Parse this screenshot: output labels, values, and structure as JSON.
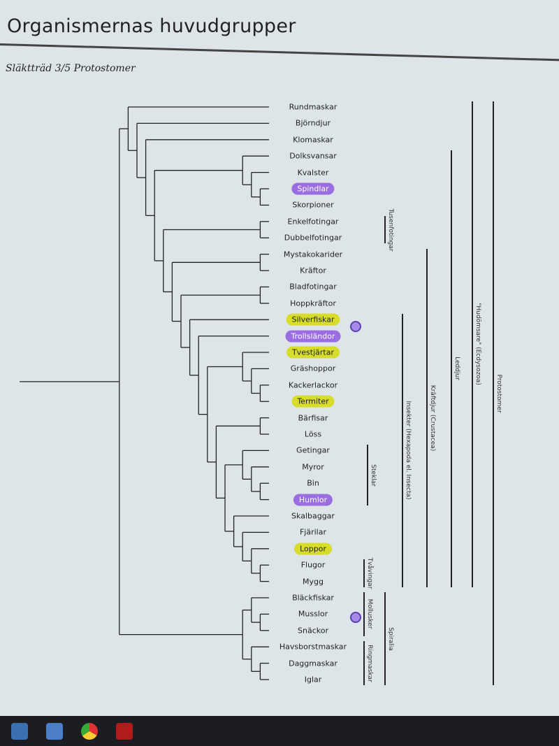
{
  "header": {
    "title": "Organismernas huvudgrupper",
    "subtitle": "Släktträd 3/5 Protostomer"
  },
  "leaves": [
    {
      "name": "Rundmaskar"
    },
    {
      "name": "Björndjur"
    },
    {
      "name": "Klomaskar"
    },
    {
      "name": "Dolksvansar"
    },
    {
      "name": "Kvalster"
    },
    {
      "name": "Spindlar",
      "highlight": "purple"
    },
    {
      "name": "Skorpioner"
    },
    {
      "name": "Enkelfotingar"
    },
    {
      "name": "Dubbelfotingar"
    },
    {
      "name": "Mystakokarider"
    },
    {
      "name": "Kräftor"
    },
    {
      "name": "Bladfotingar"
    },
    {
      "name": "Hoppkräftor"
    },
    {
      "name": "Silverfiskar",
      "highlight": "yellow"
    },
    {
      "name": "Trollsländor",
      "highlight": "purple"
    },
    {
      "name": "Tvestjärtar",
      "highlight": "yellow"
    },
    {
      "name": "Gräshoppor"
    },
    {
      "name": "Kackerlackor"
    },
    {
      "name": "Termiter",
      "highlight": "yellow"
    },
    {
      "name": "Bärfisar"
    },
    {
      "name": "Löss"
    },
    {
      "name": "Getingar"
    },
    {
      "name": "Myror"
    },
    {
      "name": "Bin"
    },
    {
      "name": "Humlor",
      "highlight": "purple"
    },
    {
      "name": "Skalbaggar"
    },
    {
      "name": "Fjärilar"
    },
    {
      "name": "Loppor",
      "highlight": "yellow"
    },
    {
      "name": "Flugor"
    },
    {
      "name": "Mygg"
    },
    {
      "name": "Bläckfiskar"
    },
    {
      "name": "Musslor"
    },
    {
      "name": "Snäckor"
    },
    {
      "name": "Havsborstmaskar"
    },
    {
      "name": "Daggmaskar"
    },
    {
      "name": "Iglar"
    }
  ],
  "tree": [
    [
      0,
      [
        1,
        [
          2,
          [
            [
              3,
              [
                4,
                [
                  5,
                  6
                ]
              ]
            ],
            [
              [
                7,
                8
              ],
              [
                [
                  9,
                  10
                ],
                [
                  [
                    11,
                    12
                  ],
                  [
                    13,
                    [
                      14,
                      [
                        [
                          15,
                          [
                            16,
                            [
                              17,
                              18
                            ]
                          ]
                        ],
                        [
                          [
                            19,
                            20
                          ],
                          [
                            [
                              21,
                              [
                                22,
                                [
                                  23,
                                  24
                                ]
                              ]
                            ],
                            [
                              25,
                              [
                                26,
                                [
                                  27,
                                  [
                                    28,
                                    29
                                  ]
                                ]
                              ]
                            ]
                          ]
                        ]
                      ]
                    ]
                  ]
                ]
              ]
            ]
          ]
        ]
      ]
    ],
    [
      [
        30,
        [
          31,
          32
        ]
      ],
      [
        33,
        [
          34,
          35
        ]
      ]
    ]
  ],
  "groups": [
    {
      "label": "Protostomer",
      "from": 0,
      "to": 35
    },
    {
      "label": "\"Hudömsare\" (Ecdysozoa)",
      "from": 0,
      "to": 29
    },
    {
      "label": "Leddjur",
      "from": 3,
      "to": 29
    },
    {
      "label": "Kräftdjur (Crustacea)",
      "from": 9,
      "to": 29
    },
    {
      "label": "Insekter (Hexapoda el. Insecta)",
      "from": 13,
      "to": 29
    },
    {
      "label": "Tusenfotingar",
      "from": 7,
      "to": 8
    },
    {
      "label": "Steklar",
      "from": 21,
      "to": 24
    },
    {
      "label": "Tvåvingar",
      "from": 28,
      "to": 29
    },
    {
      "label": "Spiralia",
      "from": 30,
      "to": 35
    },
    {
      "label": "Mollusker",
      "from": 30,
      "to": 32
    },
    {
      "label": "Ringmaskar",
      "from": 33,
      "to": 35
    }
  ],
  "colors": {
    "yellow": "#d8dd2c",
    "purple": "#9a6ee0"
  },
  "taskbar": {
    "icons": [
      "mail-icon",
      "document-icon",
      "chrome-icon",
      "pdf-icon"
    ]
  }
}
